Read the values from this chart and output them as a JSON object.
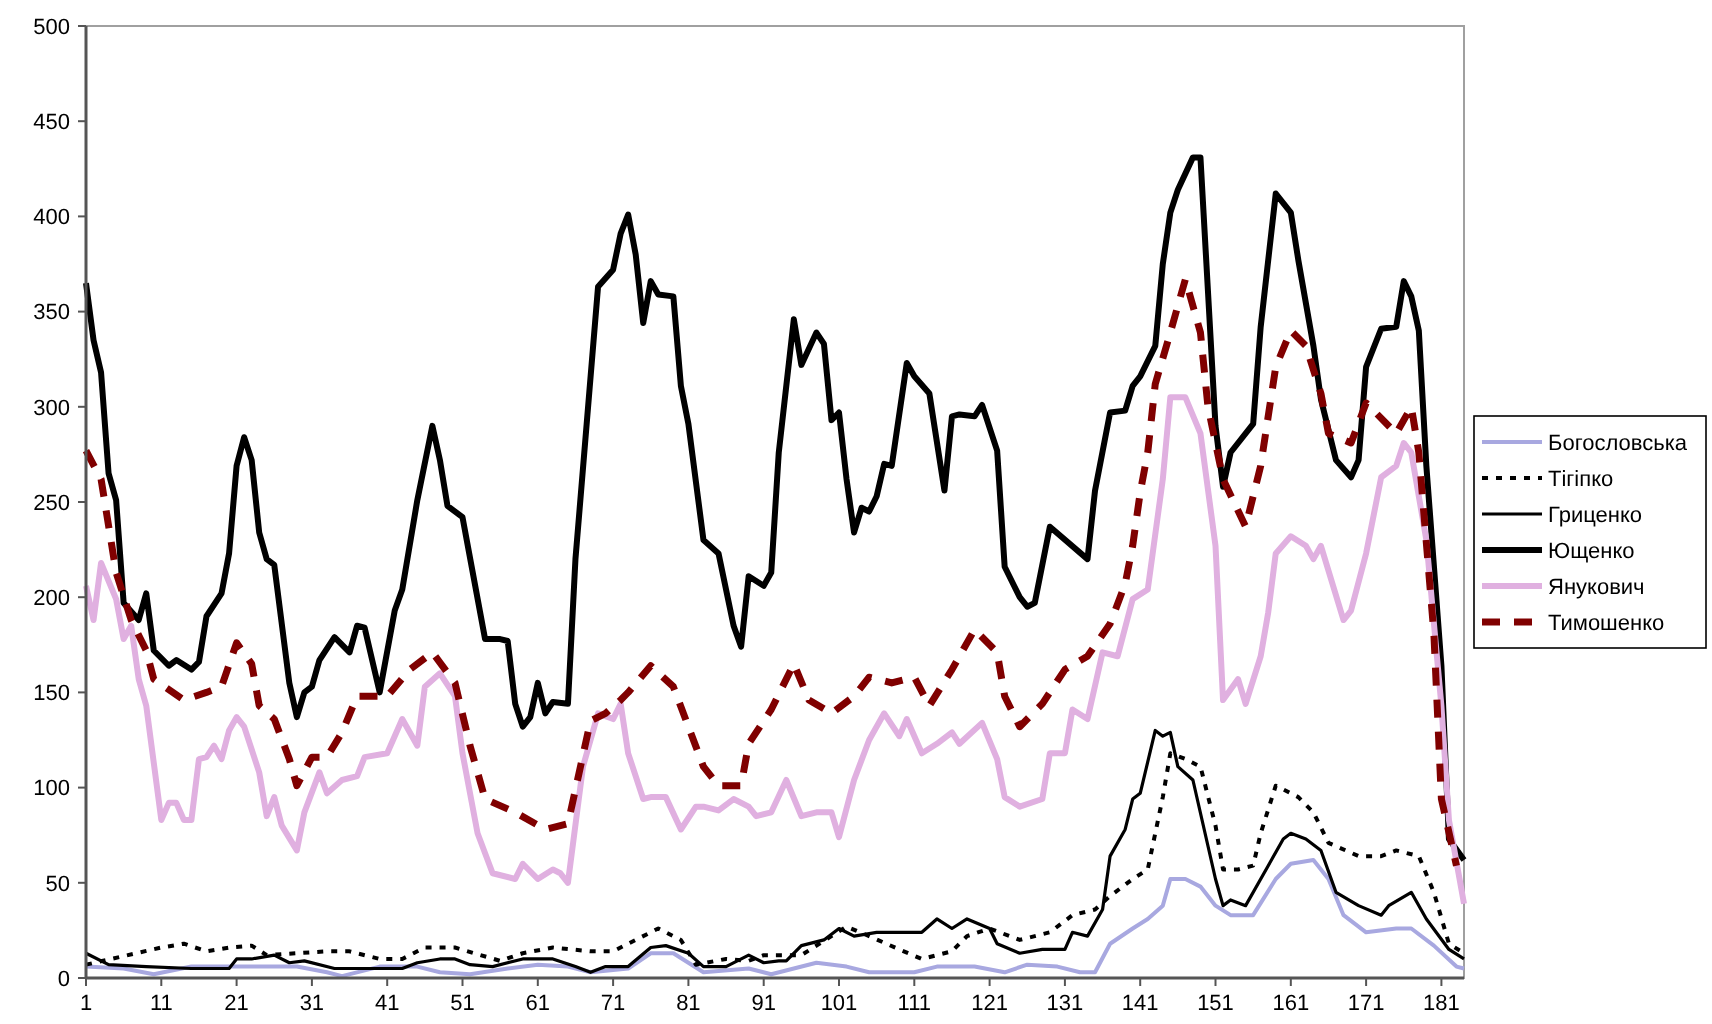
{
  "chart_data": {
    "type": "line",
    "xlim": [
      1,
      184
    ],
    "xticks": [
      1,
      11,
      21,
      31,
      41,
      51,
      61,
      71,
      81,
      91,
      101,
      111,
      121,
      131,
      141,
      151,
      161,
      171,
      181
    ],
    "ylim": [
      0,
      500
    ],
    "yticks": [
      0,
      50,
      100,
      150,
      200,
      250,
      300,
      350,
      400,
      450,
      500
    ],
    "grid": false,
    "legend": "right",
    "series": [
      {
        "name": "Богословська",
        "color": "#a8a8e0",
        "line_style": "solid",
        "x": [
          1,
          6,
          10,
          15,
          19,
          23,
          25,
          29,
          33,
          35,
          40,
          45,
          48,
          52,
          57,
          61,
          65,
          68,
          73,
          76,
          79,
          81,
          83,
          89,
          92,
          95,
          98,
          102,
          105,
          111,
          114,
          119,
          123,
          126,
          130,
          133,
          135,
          137,
          140,
          142,
          144,
          145,
          147,
          149,
          151,
          153,
          156,
          159,
          161,
          164,
          166,
          168,
          171,
          175,
          177,
          180,
          183,
          184
        ],
        "values": [
          6,
          5,
          2,
          6,
          6,
          6,
          6,
          6,
          3,
          1,
          6,
          6,
          3,
          2,
          5,
          7,
          6,
          3,
          5,
          13,
          13,
          8,
          3,
          5,
          2,
          5,
          8,
          6,
          3,
          3,
          6,
          6,
          3,
          7,
          6,
          3,
          3,
          18,
          26,
          31,
          38,
          52,
          52,
          48,
          38,
          33,
          33,
          52,
          60,
          62,
          52,
          33,
          24,
          26,
          26,
          17,
          6,
          5
        ]
      },
      {
        "name": "Тігіпко",
        "color": "#000000",
        "line_style": "dotted",
        "x": [
          1,
          11,
          14,
          17,
          20,
          23,
          25,
          33,
          36,
          40,
          43,
          46,
          50,
          56,
          59,
          63,
          68,
          71,
          74,
          77,
          80,
          82,
          86,
          89,
          91,
          96,
          102,
          105,
          109,
          112,
          116,
          118,
          121,
          125,
          129,
          132,
          135,
          137,
          140,
          142,
          144,
          145,
          147,
          149,
          151,
          152,
          154,
          156,
          157,
          159,
          162,
          164,
          166,
          170,
          173,
          175,
          178,
          180,
          182,
          184
        ],
        "values": [
          7,
          16,
          18,
          14,
          16,
          17,
          12,
          14,
          14,
          10,
          10,
          16,
          16,
          9,
          13,
          16,
          14,
          14,
          20,
          26,
          20,
          7,
          10,
          9,
          12,
          12,
          27,
          22,
          15,
          10,
          14,
          22,
          26,
          20,
          24,
          33,
          36,
          43,
          52,
          57,
          95,
          118,
          115,
          111,
          80,
          57,
          57,
          59,
          76,
          101,
          95,
          87,
          71,
          64,
          64,
          67,
          64,
          45,
          18,
          13
        ]
      },
      {
        "name": "Гриценко",
        "color": "#000000",
        "line_style": "solid",
        "x": [
          1,
          4,
          9,
          15,
          20,
          21,
          23,
          26,
          28,
          30,
          34,
          39,
          43,
          45,
          48,
          50,
          52,
          55,
          59,
          63,
          66,
          68,
          70,
          73,
          76,
          78,
          81,
          83,
          86,
          89,
          91,
          93,
          94,
          96,
          99,
          101,
          103,
          106,
          109,
          112,
          114,
          116,
          118,
          121,
          122,
          125,
          128,
          131,
          132,
          134,
          136,
          137,
          139,
          140,
          141,
          143,
          144,
          145,
          146,
          148,
          151,
          152,
          153,
          155,
          158,
          160,
          161,
          163,
          165,
          167,
          170,
          173,
          174,
          177,
          179,
          182,
          184
        ],
        "values": [
          13,
          7,
          6,
          5,
          5,
          10,
          10,
          12,
          8,
          9,
          5,
          5,
          5,
          8,
          10,
          10,
          7,
          6,
          10,
          10,
          6,
          3,
          6,
          6,
          16,
          17,
          13,
          6,
          6,
          12,
          8,
          9,
          9,
          17,
          20,
          26,
          22,
          24,
          24,
          24,
          31,
          26,
          31,
          26,
          18,
          13,
          15,
          15,
          24,
          22,
          36,
          64,
          78,
          94,
          97,
          130,
          127,
          129,
          111,
          104,
          52,
          38,
          41,
          38,
          59,
          73,
          76,
          73,
          67,
          45,
          38,
          33,
          38,
          45,
          31,
          15,
          10
        ]
      },
      {
        "name": "Ющенко",
        "color": "#000000",
        "line_style": "solid",
        "x": [
          1,
          2,
          3,
          4,
          5,
          6,
          8,
          9,
          10,
          12,
          13,
          15,
          16,
          17,
          19,
          20,
          21,
          22,
          23,
          24,
          25,
          26,
          28,
          29,
          30,
          31,
          32,
          34,
          36,
          37,
          38,
          40,
          42,
          43,
          45,
          47,
          48,
          49,
          51,
          54,
          56,
          57,
          58,
          59,
          60,
          61,
          62,
          63,
          65,
          66,
          69,
          71,
          72,
          73,
          74,
          75,
          76,
          77,
          79,
          80,
          81,
          83,
          85,
          87,
          88,
          89,
          91,
          92,
          93,
          94,
          95,
          96,
          98,
          99,
          100,
          101,
          102,
          103,
          104,
          105,
          106,
          107,
          108,
          110,
          111,
          113,
          115,
          116,
          117,
          119,
          120,
          122,
          123,
          125,
          126,
          127,
          129,
          134,
          135,
          137,
          139,
          140,
          141,
          143,
          144,
          145,
          146,
          148,
          149,
          151,
          152,
          153,
          156,
          157,
          159,
          161,
          162,
          164,
          165,
          167,
          169,
          170,
          171,
          173,
          175,
          176,
          177,
          178,
          179,
          181,
          182,
          184
        ],
        "values": [
          365,
          335,
          318,
          265,
          251,
          197,
          188,
          202,
          172,
          164,
          167,
          162,
          166,
          190,
          202,
          223,
          269,
          284,
          272,
          234,
          220,
          217,
          155,
          137,
          150,
          153,
          167,
          179,
          171,
          185,
          184,
          150,
          193,
          204,
          251,
          290,
          272,
          248,
          242,
          178,
          178,
          177,
          144,
          132,
          137,
          155,
          139,
          145,
          144,
          220,
          363,
          372,
          391,
          401,
          380,
          344,
          366,
          359,
          358,
          311,
          291,
          230,
          223,
          185,
          174,
          211,
          206,
          213,
          276,
          311,
          346,
          322,
          339,
          333,
          293,
          297,
          262,
          234,
          247,
          245,
          253,
          270,
          269,
          323,
          316,
          307,
          256,
          295,
          296,
          295,
          301,
          277,
          216,
          200,
          195,
          197,
          237,
          220,
          256,
          297,
          298,
          311,
          316,
          332,
          375,
          402,
          414,
          431,
          431,
          290,
          258,
          276,
          291,
          342,
          412,
          402,
          377,
          332,
          304,
          272,
          263,
          272,
          321,
          341,
          342,
          366,
          358,
          340,
          269,
          164,
          73,
          62
        ]
      },
      {
        "name": "Янукович",
        "color": "#e0b0e0",
        "line_style": "solid",
        "x": [
          1,
          2,
          3,
          5,
          6,
          7,
          8,
          9,
          11,
          12,
          13,
          14,
          15,
          16,
          17,
          18,
          19,
          20,
          21,
          22,
          24,
          25,
          26,
          27,
          29,
          30,
          32,
          33,
          35,
          37,
          38,
          41,
          43,
          45,
          46,
          48,
          50,
          51,
          53,
          55,
          58,
          59,
          61,
          63,
          64,
          65,
          67,
          69,
          71,
          72,
          73,
          75,
          76,
          78,
          80,
          82,
          83,
          85,
          87,
          89,
          90,
          92,
          94,
          96,
          98,
          100,
          101,
          103,
          105,
          107,
          109,
          110,
          112,
          114,
          116,
          117,
          120,
          122,
          123,
          125,
          128,
          129,
          131,
          132,
          134,
          136,
          138,
          140,
          142,
          144,
          145,
          147,
          149,
          151,
          152,
          154,
          155,
          157,
          158,
          159,
          161,
          163,
          164,
          165,
          168,
          169,
          171,
          173,
          175,
          176,
          177,
          179,
          181,
          182,
          184
        ],
        "values": [
          206,
          188,
          218,
          199,
          178,
          185,
          157,
          143,
          83,
          92,
          92,
          83,
          83,
          115,
          116,
          122,
          115,
          130,
          137,
          132,
          108,
          85,
          95,
          80,
          67,
          87,
          108,
          97,
          104,
          106,
          116,
          118,
          136,
          122,
          153,
          160,
          148,
          118,
          76,
          55,
          52,
          60,
          52,
          57,
          55,
          50,
          111,
          139,
          136,
          144,
          118,
          94,
          95,
          95,
          78,
          90,
          90,
          88,
          94,
          90,
          85,
          87,
          104,
          85,
          87,
          87,
          74,
          104,
          125,
          139,
          127,
          136,
          118,
          123,
          129,
          123,
          134,
          115,
          95,
          90,
          94,
          118,
          118,
          141,
          136,
          171,
          169,
          199,
          204,
          262,
          305,
          305,
          286,
          227,
          146,
          157,
          144,
          169,
          192,
          223,
          232,
          227,
          220,
          227,
          188,
          193,
          223,
          263,
          269,
          281,
          276,
          230,
          143,
          83,
          39
        ]
      },
      {
        "name": "Тимошенко",
        "color": "#800000",
        "line_style": "dashed",
        "x": [
          1,
          3,
          5,
          7,
          9,
          10,
          14,
          17,
          19,
          21,
          23,
          24,
          26,
          28,
          29,
          31,
          33,
          35,
          37,
          41,
          44,
          47,
          50,
          52,
          54,
          58,
          62,
          65,
          68,
          70,
          72,
          73,
          76,
          79,
          81,
          83,
          85,
          88,
          89,
          92,
          95,
          97,
          100,
          103,
          105,
          108,
          111,
          113,
          116,
          119,
          122,
          123,
          125,
          128,
          131,
          134,
          137,
          139,
          140,
          141,
          142,
          143,
          145,
          146,
          147,
          149,
          150,
          152,
          155,
          157,
          159,
          161,
          163,
          165,
          166,
          169,
          171,
          175,
          177,
          178,
          180,
          181,
          183
        ],
        "values": [
          277,
          262,
          213,
          188,
          172,
          157,
          146,
          150,
          153,
          176,
          165,
          143,
          136,
          115,
          101,
          116,
          116,
          129,
          148,
          148,
          162,
          171,
          155,
          122,
          94,
          87,
          78,
          81,
          135,
          139,
          146,
          150,
          164,
          153,
          132,
          111,
          101,
          101,
          123,
          141,
          165,
          146,
          139,
          148,
          158,
          155,
          158,
          143,
          162,
          183,
          171,
          148,
          132,
          144,
          162,
          169,
          186,
          207,
          227,
          255,
          276,
          312,
          339,
          353,
          367,
          339,
          300,
          262,
          237,
          269,
          321,
          340,
          332,
          307,
          286,
          281,
          302,
          286,
          300,
          276,
          181,
          94,
          59
        ]
      }
    ]
  }
}
